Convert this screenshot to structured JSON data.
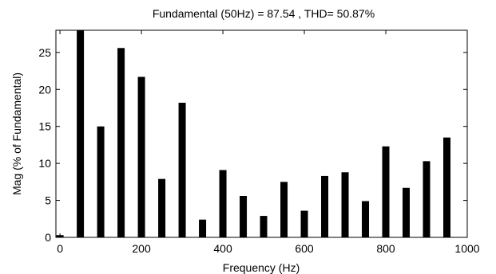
{
  "chart_data": {
    "type": "bar",
    "title": "Fundamental (50Hz) = 87.54 , THD= 50.87%",
    "xlabel": "Frequency (Hz)",
    "ylabel": "Mag (% of Fundamental)",
    "xlim": [
      -10,
      1000
    ],
    "ylim": [
      0,
      28
    ],
    "xticks": [
      0,
      200,
      400,
      600,
      800,
      1000
    ],
    "yticks": [
      0,
      5,
      10,
      15,
      20,
      25
    ],
    "x": [
      0,
      50,
      100,
      150,
      200,
      250,
      300,
      350,
      400,
      450,
      500,
      550,
      600,
      650,
      700,
      750,
      800,
      850,
      900,
      950
    ],
    "values": [
      0.3,
      28.0,
      15.0,
      25.6,
      21.7,
      7.9,
      18.2,
      2.4,
      9.1,
      5.6,
      2.9,
      7.5,
      3.6,
      8.3,
      8.8,
      4.9,
      12.3,
      6.7,
      10.3,
      13.5
    ],
    "grid": false,
    "bar_color": "#000000"
  }
}
